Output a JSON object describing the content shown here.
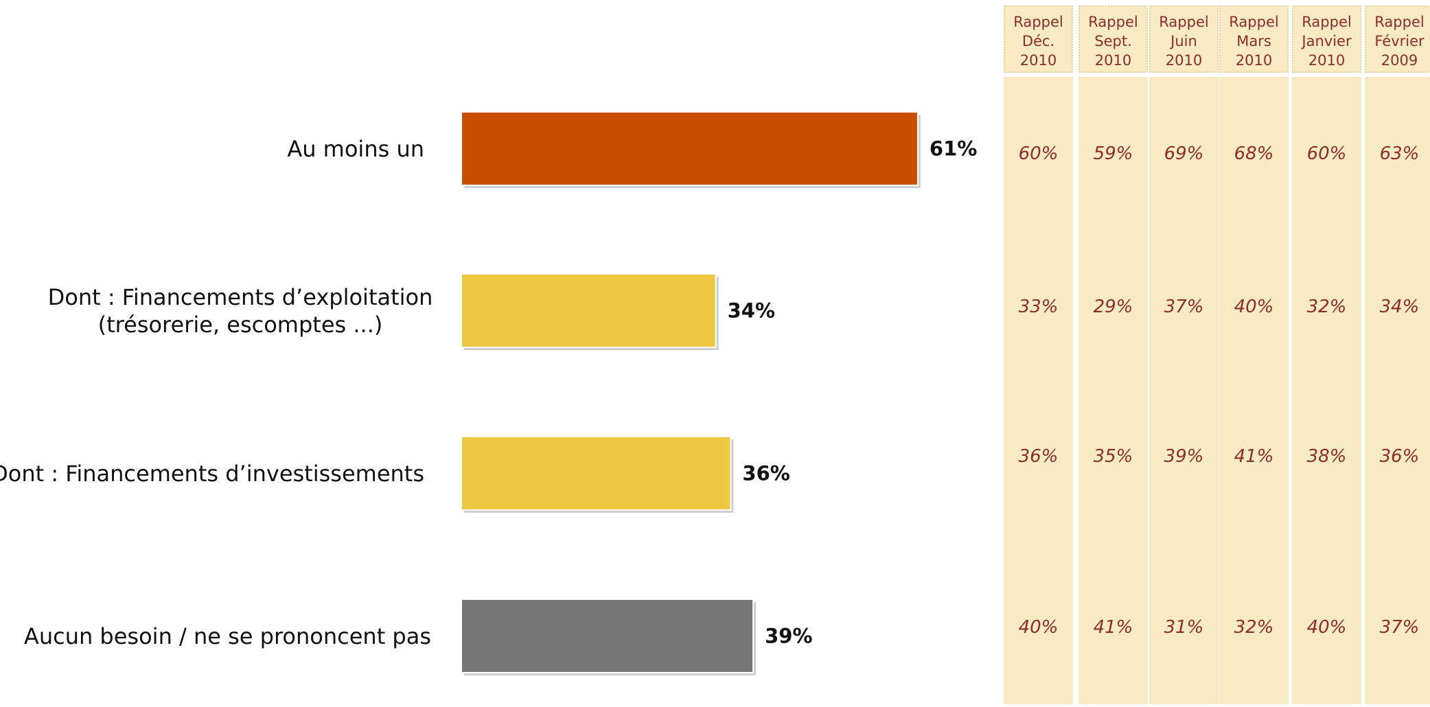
{
  "chart_data": {
    "type": "bar",
    "orientation": "horizontal",
    "categories": [
      [
        "Au moins un"
      ],
      [
        "Dont : Financements d’exploitation",
        "(trésorerie, escomptes ...)"
      ],
      [
        "Dont : Financements d’investissements"
      ],
      [
        "Aucun besoin / ne se prononcent pas"
      ]
    ],
    "values": [
      61,
      34,
      36,
      39
    ],
    "value_labels": [
      "61%",
      "34%",
      "36%",
      "39%"
    ],
    "bar_colors": [
      "#c84e00",
      "#efc842",
      "#efc842",
      "#777777"
    ],
    "xlim": [
      0,
      100
    ]
  },
  "history": {
    "columns": [
      {
        "header": [
          "Rappel",
          "Déc.",
          "2010"
        ],
        "values": [
          "60%",
          "33%",
          "36%",
          "40%"
        ]
      },
      {
        "header": [
          "Rappel",
          "Sept.",
          "2010"
        ],
        "values": [
          "59%",
          "29%",
          "35%",
          "41%"
        ]
      },
      {
        "header": [
          "Rappel",
          "Juin",
          "2010"
        ],
        "values": [
          "69%",
          "37%",
          "39%",
          "31%"
        ]
      },
      {
        "header": [
          "Rappel",
          "Mars",
          "2010"
        ],
        "values": [
          "68%",
          "40%",
          "41%",
          "32%"
        ]
      },
      {
        "header": [
          "Rappel",
          "Janvier",
          "2010"
        ],
        "values": [
          "60%",
          "32%",
          "38%",
          "40%"
        ]
      },
      {
        "header": [
          "Rappel",
          "Février",
          "2009"
        ],
        "values": [
          "63%",
          "34%",
          "36%",
          "37%"
        ]
      }
    ]
  },
  "colors": {
    "history_bg": "#f8ebc4",
    "history_text": "#8c2c2c"
  }
}
